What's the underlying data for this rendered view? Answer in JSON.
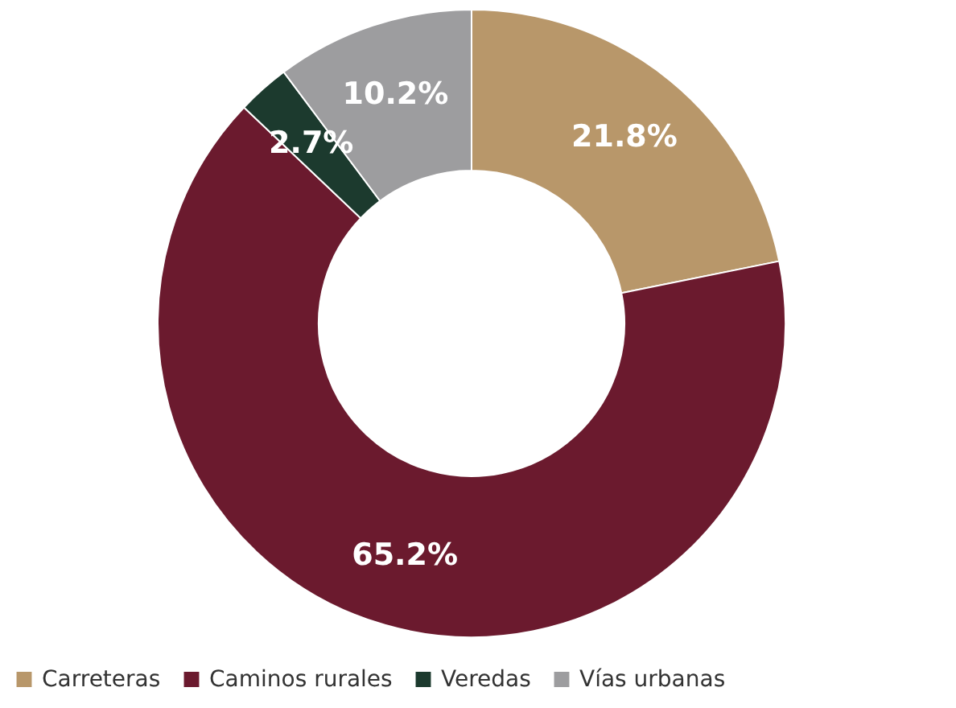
{
  "chart_data": {
    "type": "donut",
    "categories": [
      "Carreteras",
      "Caminos rurales",
      "Veredas",
      "Vías urbanas"
    ],
    "values": [
      21.8,
      65.2,
      2.7,
      10.2
    ],
    "colors": [
      "#b8976a",
      "#6b1a2e",
      "#1c3a2e",
      "#9d9d9f"
    ],
    "value_labels": [
      "21.8%",
      "65.2%",
      "2.7%",
      "10.2%"
    ],
    "legend": "bottom"
  }
}
